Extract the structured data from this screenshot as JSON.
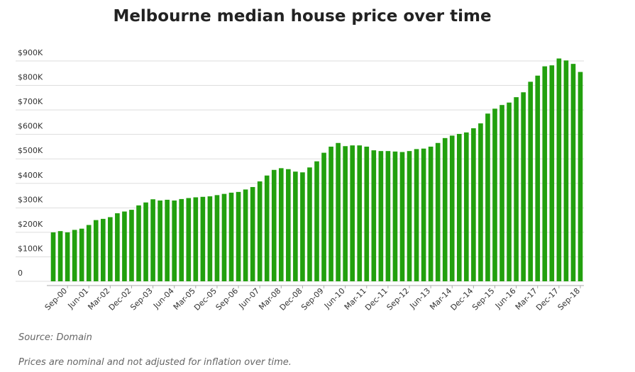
{
  "chart_data": {
    "type": "bar",
    "title": "Melbourne median house price over time",
    "categories": [
      null,
      null,
      "Sep-00",
      null,
      null,
      "Jun-01",
      null,
      null,
      "Mar-02",
      null,
      null,
      "Dec-02",
      null,
      null,
      "Sep-03",
      null,
      null,
      "Jun-04",
      null,
      null,
      "Mar-05",
      null,
      null,
      "Dec-05",
      null,
      null,
      "Sep-06",
      null,
      null,
      "Jun-07",
      null,
      null,
      "Mar-08",
      null,
      null,
      "Dec-08",
      null,
      null,
      "Sep-09",
      null,
      null,
      "Jun-10",
      null,
      null,
      "Mar-11",
      null,
      null,
      "Dec-11",
      null,
      null,
      "Sep-12",
      null,
      null,
      "Jun-13",
      null,
      null,
      "Mar-14",
      null,
      null,
      "Dec-14",
      null,
      null,
      "Sep-15",
      null,
      null,
      "Jun-16",
      null,
      null,
      "Mar-17",
      null,
      null,
      "Dec-17",
      null,
      null,
      "Sep-18"
    ],
    "values": [
      200000,
      205000,
      200000,
      210000,
      215000,
      230000,
      250000,
      255000,
      262000,
      278000,
      285000,
      292000,
      310000,
      322000,
      335000,
      330000,
      333000,
      330000,
      336000,
      340000,
      343000,
      345000,
      347000,
      352000,
      357000,
      362000,
      365000,
      375000,
      385000,
      408000,
      432000,
      455000,
      462000,
      458000,
      448000,
      445000,
      465000,
      490000,
      525000,
      550000,
      565000,
      552000,
      555000,
      555000,
      550000,
      535000,
      532000,
      532000,
      530000,
      528000,
      532000,
      540000,
      542000,
      550000,
      565000,
      585000,
      595000,
      602000,
      608000,
      625000,
      645000,
      685000,
      705000,
      720000,
      730000,
      752000,
      772000,
      815000,
      840000,
      878000,
      882000,
      910000,
      902000,
      888000,
      855000
    ],
    "color": "#22a00e",
    "ylim": [
      0,
      900000
    ],
    "yticks": [
      {
        "value": 0,
        "label": "0"
      },
      {
        "value": 100000,
        "label": "$100K"
      },
      {
        "value": 200000,
        "label": "$200K"
      },
      {
        "value": 300000,
        "label": "$300K"
      },
      {
        "value": 400000,
        "label": "$400K"
      },
      {
        "value": 500000,
        "label": "$500K"
      },
      {
        "value": 600000,
        "label": "$600K"
      },
      {
        "value": 700000,
        "label": "$700K"
      },
      {
        "value": 800000,
        "label": "$800K"
      },
      {
        "value": 900000,
        "label": "$900K"
      }
    ],
    "grid": true,
    "source": "Source: Domain",
    "note": "Prices are nominal and not adjusted for inflation over time."
  }
}
